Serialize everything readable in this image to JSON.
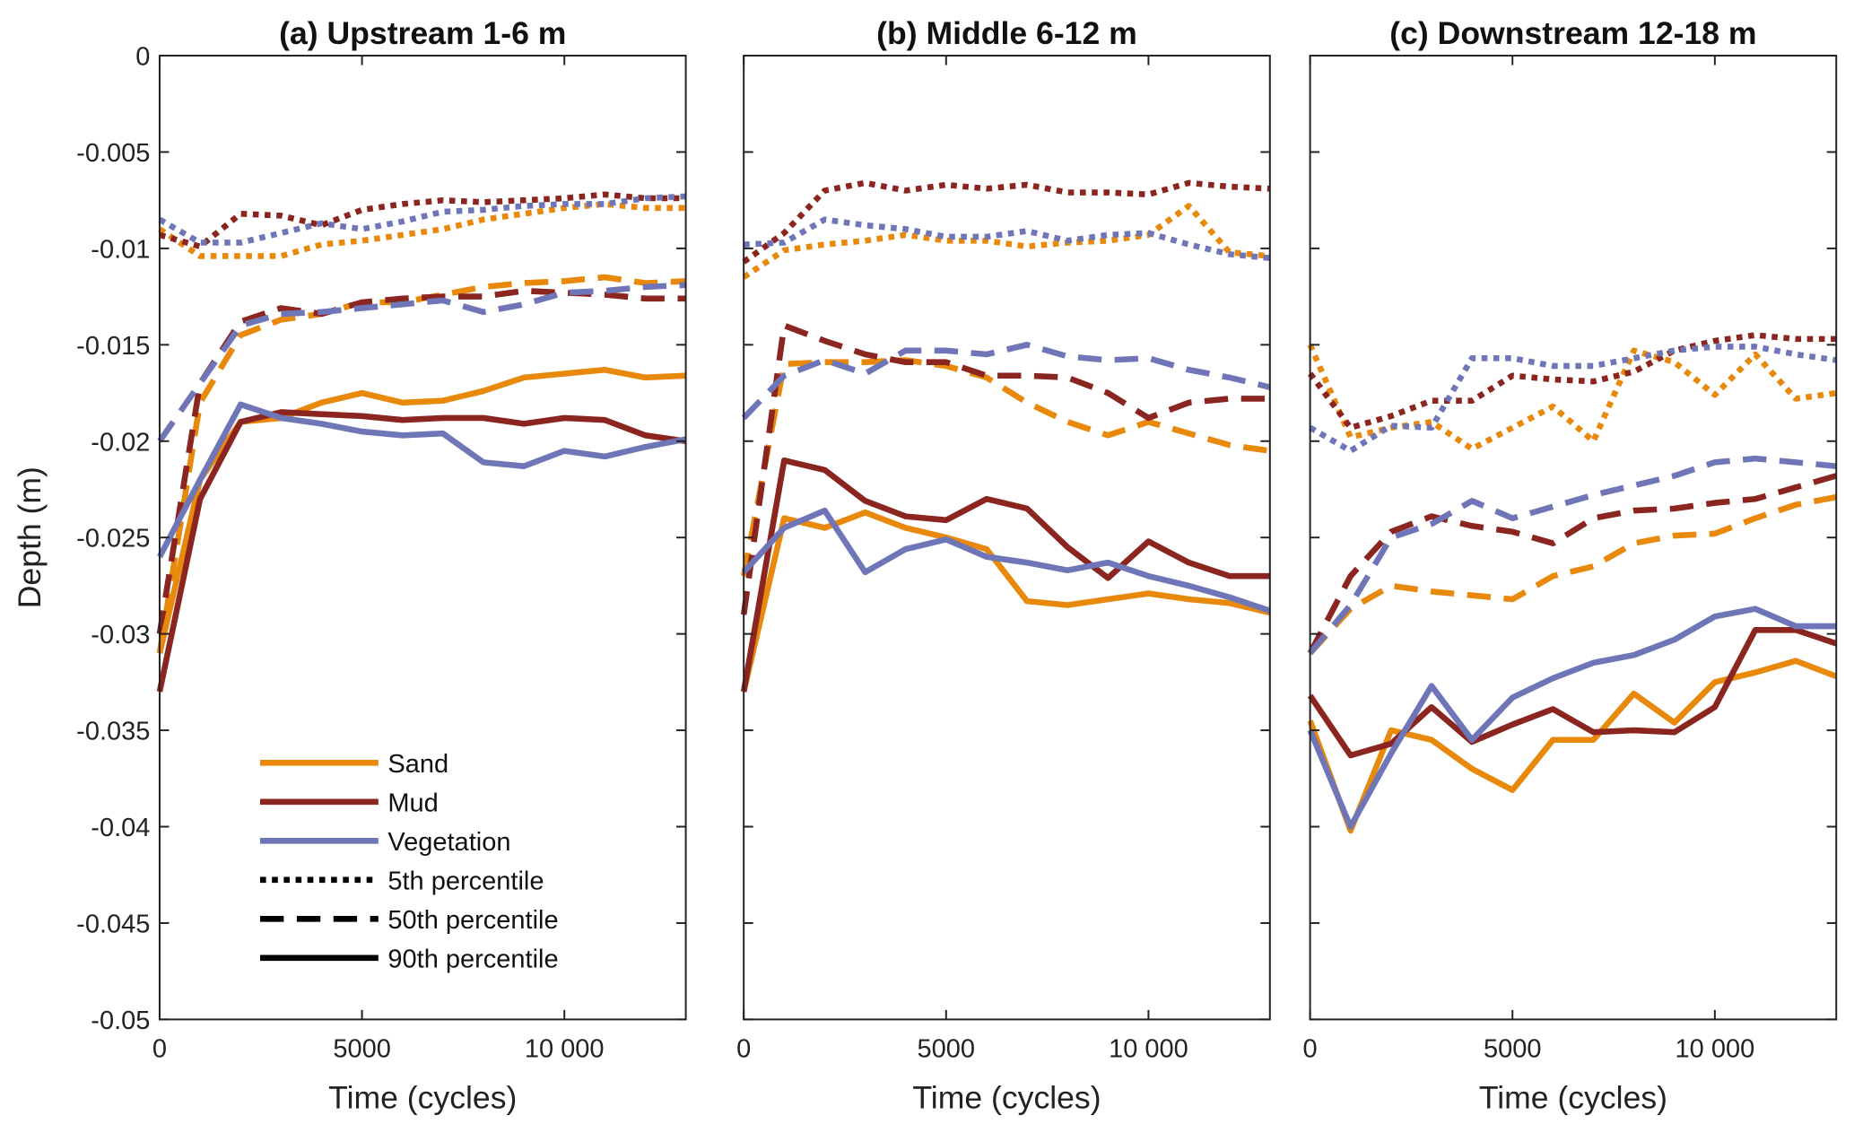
{
  "chart_data": {
    "type": "line",
    "ylabel": "Depth (m)",
    "xlabel": "Time (cycles)",
    "xlim": [
      0,
      13000
    ],
    "ylim": [
      -0.05,
      0
    ],
    "xticks": [
      0,
      5000,
      10000
    ],
    "xtick_labels": [
      "0",
      "5000",
      "10 000"
    ],
    "yticks": [
      0,
      -0.005,
      -0.01,
      -0.015,
      -0.02,
      -0.025,
      -0.03,
      -0.035,
      -0.04,
      -0.045,
      -0.05
    ],
    "ytick_labels": [
      "0",
      "-0.005",
      "-0.01",
      "-0.015",
      "-0.02",
      "-0.025",
      "-0.03",
      "-0.035",
      "-0.04",
      "-0.045",
      "-0.05"
    ],
    "grid": false,
    "legend": {
      "placement": "bottom-left of panel (a)",
      "materials": [
        {
          "label": "Sand",
          "color": "#E8890C"
        },
        {
          "label": "Mud",
          "color": "#8B2520"
        },
        {
          "label": "Vegetation",
          "color": "#6F76B8"
        }
      ],
      "styles": [
        {
          "label": "5th percentile",
          "style": "dotted"
        },
        {
          "label": "50th percentile",
          "style": "dashed"
        },
        {
          "label": "90th percentile",
          "style": "solid"
        }
      ]
    },
    "x": [
      0,
      1000,
      2000,
      3000,
      4000,
      5000,
      6000,
      7000,
      8000,
      9000,
      10000,
      11000,
      12000,
      13000
    ],
    "panels": [
      {
        "title": "(a) Upstream 1-6 m",
        "series": {
          "Sand": {
            "p5": [
              -0.009,
              -0.0104,
              -0.0104,
              -0.0104,
              -0.0098,
              -0.0096,
              -0.0093,
              -0.009,
              -0.0085,
              -0.0082,
              -0.0079,
              -0.0077,
              -0.0079,
              -0.0079
            ],
            "p50": [
              -0.031,
              -0.018,
              -0.0145,
              -0.0137,
              -0.0134,
              -0.0128,
              -0.0128,
              -0.0124,
              -0.012,
              -0.0118,
              -0.0117,
              -0.0115,
              -0.0118,
              -0.0117
            ],
            "p90": [
              -0.031,
              -0.022,
              -0.019,
              -0.0188,
              -0.018,
              -0.0175,
              -0.018,
              -0.0179,
              -0.0174,
              -0.0167,
              -0.0165,
              -0.0163,
              -0.0167,
              -0.0166
            ]
          },
          "Mud": {
            "p5": [
              -0.0093,
              -0.0099,
              -0.0082,
              -0.0083,
              -0.0088,
              -0.008,
              -0.0077,
              -0.0075,
              -0.0076,
              -0.0075,
              -0.0074,
              -0.0072,
              -0.0074,
              -0.0074
            ],
            "p50": [
              -0.03,
              -0.017,
              -0.0138,
              -0.0131,
              -0.0134,
              -0.0128,
              -0.0126,
              -0.0125,
              -0.0125,
              -0.0122,
              -0.0123,
              -0.0124,
              -0.0126,
              -0.0126
            ],
            "p90": [
              -0.033,
              -0.023,
              -0.019,
              -0.0185,
              -0.0186,
              -0.0187,
              -0.0189,
              -0.0188,
              -0.0188,
              -0.0191,
              -0.0188,
              -0.0189,
              -0.0197,
              -0.02
            ]
          },
          "Vegetation": {
            "p5": [
              -0.0085,
              -0.0097,
              -0.0097,
              -0.0092,
              -0.0087,
              -0.009,
              -0.0086,
              -0.0081,
              -0.008,
              -0.0078,
              -0.0077,
              -0.0077,
              -0.0074,
              -0.0073
            ],
            "p50": [
              -0.02,
              -0.017,
              -0.014,
              -0.0134,
              -0.0133,
              -0.0131,
              -0.0129,
              -0.0127,
              -0.0133,
              -0.0129,
              -0.0123,
              -0.0122,
              -0.012,
              -0.0119
            ],
            "p90": [
              -0.026,
              -0.022,
              -0.0181,
              -0.0188,
              -0.0191,
              -0.0195,
              -0.0197,
              -0.0196,
              -0.0211,
              -0.0213,
              -0.0205,
              -0.0208,
              -0.0203,
              -0.0199
            ]
          }
        }
      },
      {
        "title": "(b) Middle 6-12 m",
        "series": {
          "Sand": {
            "p5": [
              -0.0115,
              -0.0101,
              -0.0098,
              -0.0096,
              -0.0093,
              -0.0096,
              -0.0096,
              -0.0099,
              -0.0097,
              -0.0096,
              -0.0093,
              -0.0078,
              -0.0102,
              -0.0104
            ],
            "p50": [
              -0.027,
              -0.016,
              -0.0159,
              -0.0159,
              -0.0158,
              -0.0161,
              -0.0167,
              -0.018,
              -0.019,
              -0.0197,
              -0.019,
              -0.0196,
              -0.0202,
              -0.0205
            ],
            "p90": [
              -0.033,
              -0.024,
              -0.0245,
              -0.0237,
              -0.0245,
              -0.025,
              -0.0256,
              -0.0283,
              -0.0285,
              -0.0282,
              -0.0279,
              -0.0282,
              -0.0284,
              -0.0289
            ]
          },
          "Mud": {
            "p5": [
              -0.0107,
              -0.0092,
              -0.007,
              -0.0066,
              -0.007,
              -0.0067,
              -0.0069,
              -0.0067,
              -0.0071,
              -0.0071,
              -0.0072,
              -0.0066,
              -0.0068,
              -0.0069
            ],
            "p50": [
              -0.029,
              -0.014,
              -0.0148,
              -0.0155,
              -0.0159,
              -0.0159,
              -0.0166,
              -0.0166,
              -0.0167,
              -0.0175,
              -0.0188,
              -0.018,
              -0.0178,
              -0.0178
            ],
            "p90": [
              -0.033,
              -0.021,
              -0.0215,
              -0.0231,
              -0.0239,
              -0.0241,
              -0.023,
              -0.0235,
              -0.0255,
              -0.0271,
              -0.0252,
              -0.0263,
              -0.027,
              -0.027
            ]
          },
          "Vegetation": {
            "p5": [
              -0.0098,
              -0.0097,
              -0.0085,
              -0.0088,
              -0.009,
              -0.0094,
              -0.0094,
              -0.0091,
              -0.0096,
              -0.0093,
              -0.0092,
              -0.0098,
              -0.0103,
              -0.0105
            ],
            "p50": [
              -0.0188,
              -0.0166,
              -0.0158,
              -0.0165,
              -0.0153,
              -0.0153,
              -0.0155,
              -0.015,
              -0.0156,
              -0.0158,
              -0.0157,
              -0.0163,
              -0.0167,
              -0.0172
            ],
            "p90": [
              -0.0268,
              -0.0245,
              -0.0236,
              -0.0268,
              -0.0256,
              -0.0251,
              -0.026,
              -0.0263,
              -0.0267,
              -0.0263,
              -0.027,
              -0.0275,
              -0.0281,
              -0.0288
            ]
          }
        }
      },
      {
        "title": "(c) Downstream 12-18 m",
        "series": {
          "Sand": {
            "p5": [
              -0.015,
              -0.0198,
              -0.0193,
              -0.019,
              -0.0204,
              -0.0193,
              -0.0182,
              -0.02,
              -0.0153,
              -0.0159,
              -0.0176,
              -0.0155,
              -0.0178,
              -0.0175
            ],
            "p50": [
              -0.031,
              -0.0287,
              -0.0275,
              -0.0278,
              -0.028,
              -0.0282,
              -0.027,
              -0.0265,
              -0.0253,
              -0.0249,
              -0.0248,
              -0.024,
              -0.0233,
              -0.0229
            ],
            "p90": [
              -0.0345,
              -0.0402,
              -0.035,
              -0.0355,
              -0.037,
              -0.0381,
              -0.0355,
              -0.0355,
              -0.0331,
              -0.0346,
              -0.0325,
              -0.032,
              -0.0314,
              -0.0322
            ]
          },
          "Mud": {
            "p5": [
              -0.0165,
              -0.0193,
              -0.0187,
              -0.0179,
              -0.0179,
              -0.0166,
              -0.0168,
              -0.0169,
              -0.0164,
              -0.0153,
              -0.0148,
              -0.0145,
              -0.0147,
              -0.0147
            ],
            "p50": [
              -0.031,
              -0.027,
              -0.0247,
              -0.0239,
              -0.0244,
              -0.0247,
              -0.0253,
              -0.024,
              -0.0236,
              -0.0235,
              -0.0232,
              -0.023,
              -0.0224,
              -0.0218
            ],
            "p90": [
              -0.0332,
              -0.0363,
              -0.0357,
              -0.0338,
              -0.0356,
              -0.0347,
              -0.0339,
              -0.0351,
              -0.035,
              -0.0351,
              -0.0338,
              -0.0298,
              -0.0298,
              -0.0305
            ]
          },
          "Vegetation": {
            "p5": [
              -0.0193,
              -0.0205,
              -0.0192,
              -0.0193,
              -0.0157,
              -0.0157,
              -0.0161,
              -0.0161,
              -0.0157,
              -0.0153,
              -0.0151,
              -0.0151,
              -0.0155,
              -0.0158
            ],
            "p50": [
              -0.031,
              -0.0285,
              -0.025,
              -0.0243,
              -0.0231,
              -0.024,
              -0.0234,
              -0.0228,
              -0.0223,
              -0.0218,
              -0.0211,
              -0.0209,
              -0.0211,
              -0.0213
            ],
            "p90": [
              -0.035,
              -0.04,
              -0.0362,
              -0.0327,
              -0.0355,
              -0.0333,
              -0.0323,
              -0.0315,
              -0.0311,
              -0.0303,
              -0.0291,
              -0.0287,
              -0.0296,
              -0.0296
            ]
          }
        }
      }
    ]
  }
}
